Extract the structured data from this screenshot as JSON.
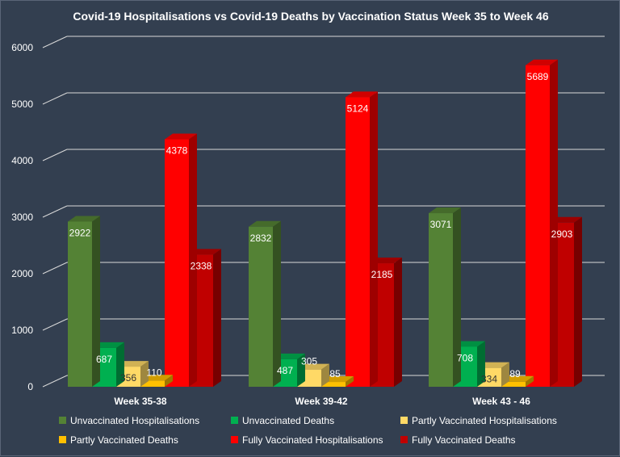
{
  "chart_data": {
    "type": "bar",
    "title": "Covid-19 Hospitalisations  vs Covid-19 Deaths by Vaccination Status Week 35 to Week 46",
    "categories": [
      "Week 35-38",
      "Week 39-42",
      "Week 43 - 46"
    ],
    "ylim": [
      0,
      6000
    ],
    "yticks": [
      "0",
      "1000",
      "2000",
      "3000",
      "4000",
      "5000",
      "6000"
    ],
    "grid": true,
    "legend_position": "bottom",
    "series": [
      {
        "name": "Unvaccinated Hospitalisations",
        "values": [
          2922,
          2832,
          3071
        ],
        "labels": [
          "2922",
          "2832",
          "3071"
        ],
        "color": "#548235"
      },
      {
        "name": "Unvaccinated Deaths",
        "values": [
          687,
          487,
          708
        ],
        "labels": [
          "687",
          "487",
          "708"
        ],
        "color": "#00b050"
      },
      {
        "name": "Partly Vaccinated Hospitalisations",
        "values": [
          356,
          305,
          334
        ],
        "labels": [
          "356",
          "305",
          "334"
        ],
        "color": "#ffd966"
      },
      {
        "name": "Partly Vaccinated Deaths",
        "values": [
          110,
          85,
          89
        ],
        "labels": [
          "110",
          "85",
          "89"
        ],
        "color": "#ffc000"
      },
      {
        "name": "Fully Vaccinated Hospitalisations",
        "values": [
          4378,
          5124,
          5689
        ],
        "labels": [
          "4378",
          "5124",
          "5689"
        ],
        "color": "#ff0000"
      },
      {
        "name": "Fully Vaccinated Deaths",
        "values": [
          2338,
          2185,
          2903
        ],
        "labels": [
          "2338",
          "2185",
          "2903"
        ],
        "color": "#c00000"
      }
    ]
  }
}
